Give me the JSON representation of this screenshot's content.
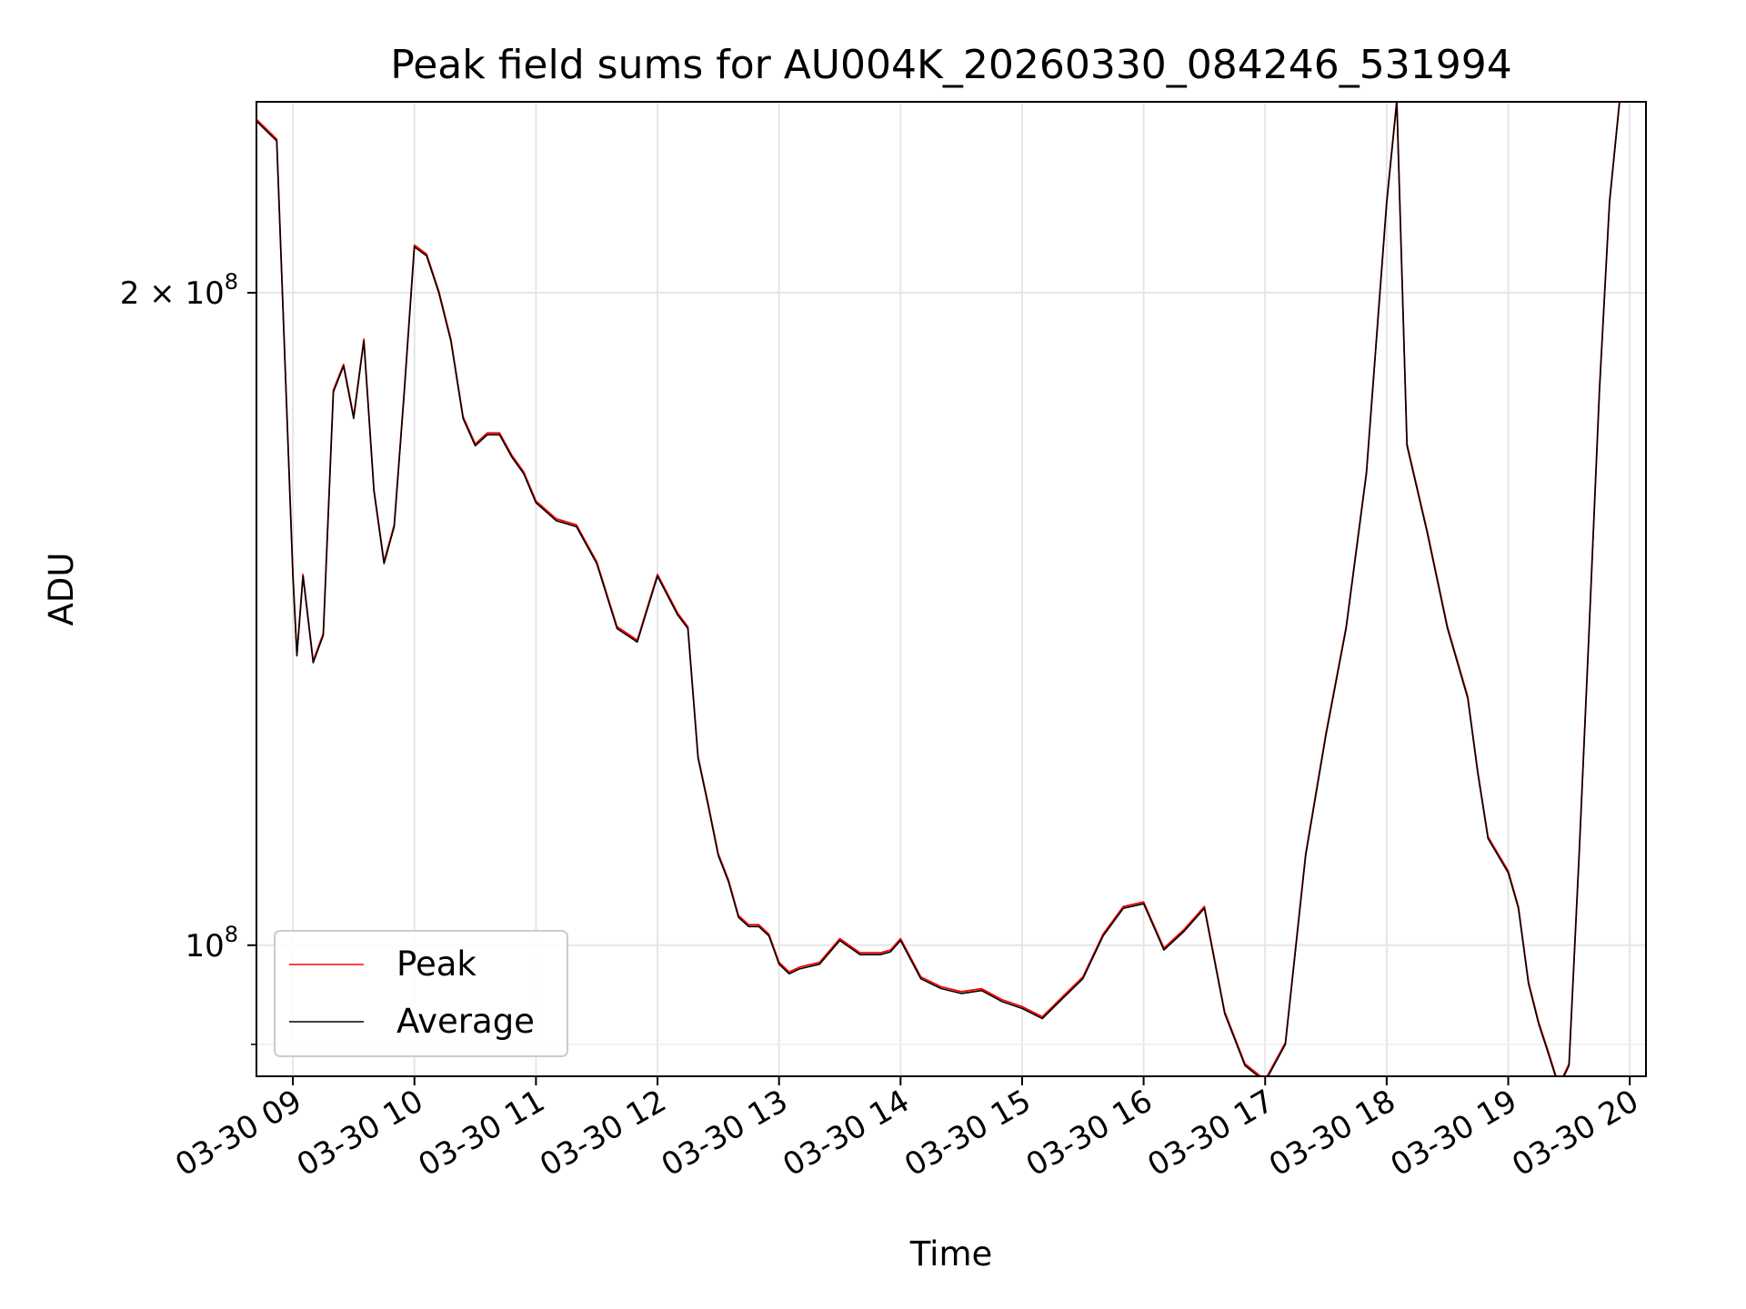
{
  "chart_data": {
    "type": "line",
    "title": "Peak field sums for AU004K_20260330_084246_531994",
    "xlabel": "Time",
    "ylabel": "ADU",
    "yscale": "log",
    "ylim": [
      87000000,
      245000000
    ],
    "xlim": [
      "03-30 08:42",
      "03-30 20:08"
    ],
    "grid": true,
    "legend_position": "lower-left",
    "x_ticks": [
      "03-30 09",
      "03-30 10",
      "03-30 11",
      "03-30 12",
      "03-30 13",
      "03-30 14",
      "03-30 15",
      "03-30 16",
      "03-30 17",
      "03-30 18",
      "03-30 19",
      "03-30 20"
    ],
    "y_ticks": [
      {
        "value": 200000000,
        "base": "2 × 10",
        "exp": "8"
      },
      {
        "value": 100000000,
        "base": "10",
        "exp": "8"
      }
    ],
    "y_minor_ticks": [
      90000000
    ],
    "series": [
      {
        "name": "Peak",
        "color": "#ff0000"
      },
      {
        "name": "Average",
        "color": "#000000"
      }
    ],
    "x": [
      "03-30 08:42",
      "03-30 08:52",
      "03-30 09:00",
      "03-30 09:02",
      "03-30 09:05",
      "03-30 09:10",
      "03-30 09:15",
      "03-30 09:20",
      "03-30 09:25",
      "03-30 09:30",
      "03-30 09:35",
      "03-30 09:40",
      "03-30 09:45",
      "03-30 09:50",
      "03-30 09:55",
      "03-30 10:00",
      "03-30 10:06",
      "03-30 10:12",
      "03-30 10:18",
      "03-30 10:24",
      "03-30 10:30",
      "03-30 10:36",
      "03-30 10:42",
      "03-30 10:48",
      "03-30 10:54",
      "03-30 11:00",
      "03-30 11:10",
      "03-30 11:20",
      "03-30 11:30",
      "03-30 11:40",
      "03-30 11:45",
      "03-30 11:50",
      "03-30 12:00",
      "03-30 12:10",
      "03-30 12:15",
      "03-30 12:20",
      "03-30 12:25",
      "03-30 12:30",
      "03-30 12:35",
      "03-30 12:40",
      "03-30 12:45",
      "03-30 12:50",
      "03-30 12:55",
      "03-30 13:00",
      "03-30 13:05",
      "03-30 13:10",
      "03-30 13:20",
      "03-30 13:30",
      "03-30 13:40",
      "03-30 13:50",
      "03-30 13:55",
      "03-30 14:00",
      "03-30 14:10",
      "03-30 14:20",
      "03-30 14:30",
      "03-30 14:40",
      "03-30 14:50",
      "03-30 15:00",
      "03-30 15:10",
      "03-30 15:20",
      "03-30 15:30",
      "03-30 15:40",
      "03-30 15:50",
      "03-30 16:00",
      "03-30 16:10",
      "03-30 16:20",
      "03-30 16:30",
      "03-30 16:40",
      "03-30 16:50",
      "03-30 17:00",
      "03-30 17:10",
      "03-30 17:20",
      "03-30 17:30",
      "03-30 17:40",
      "03-30 17:50",
      "03-30 18:00",
      "03-30 18:05",
      "03-30 18:10",
      "03-30 18:20",
      "03-30 18:30",
      "03-30 18:40",
      "03-30 18:45",
      "03-30 18:50",
      "03-30 19:00",
      "03-30 19:05",
      "03-30 19:10",
      "03-30 19:15",
      "03-30 19:20",
      "03-30 19:25",
      "03-30 19:30",
      "03-30 19:35",
      "03-30 19:40",
      "03-30 19:45",
      "03-30 19:50",
      "03-30 19:55"
    ],
    "values": [
      240000000,
      235000000,
      148000000,
      136000000,
      148000000,
      135000000,
      139000000,
      180000000,
      185000000,
      175000000,
      190000000,
      162000000,
      150000000,
      156000000,
      180000000,
      210000000,
      208000000,
      200000000,
      190000000,
      175000000,
      170000000,
      172000000,
      172000000,
      168000000,
      165000000,
      160000000,
      157000000,
      156000000,
      150000000,
      140000000,
      139000000,
      138000000,
      148000000,
      142000000,
      140000000,
      122000000,
      116000000,
      110000000,
      107000000,
      103000000,
      102000000,
      102000000,
      101000000,
      98000000,
      97000000,
      97500000,
      98000000,
      100500000,
      99000000,
      99000000,
      99300000,
      100500000,
      96500000,
      95500000,
      95000000,
      95300000,
      94200000,
      93500000,
      92500000,
      94500000,
      96500000,
      101000000,
      104000000,
      104500000,
      99500000,
      101500000,
      104000000,
      93000000,
      88000000,
      86500000,
      90000000,
      110000000,
      125000000,
      140000000,
      165000000,
      220000000,
      245000000,
      170000000,
      155000000,
      140000000,
      130000000,
      120000000,
      112000000,
      108000000,
      104000000,
      96000000,
      92000000,
      89000000,
      86000000,
      88000000,
      110000000,
      140000000,
      180000000,
      220000000,
      245000000
    ]
  }
}
